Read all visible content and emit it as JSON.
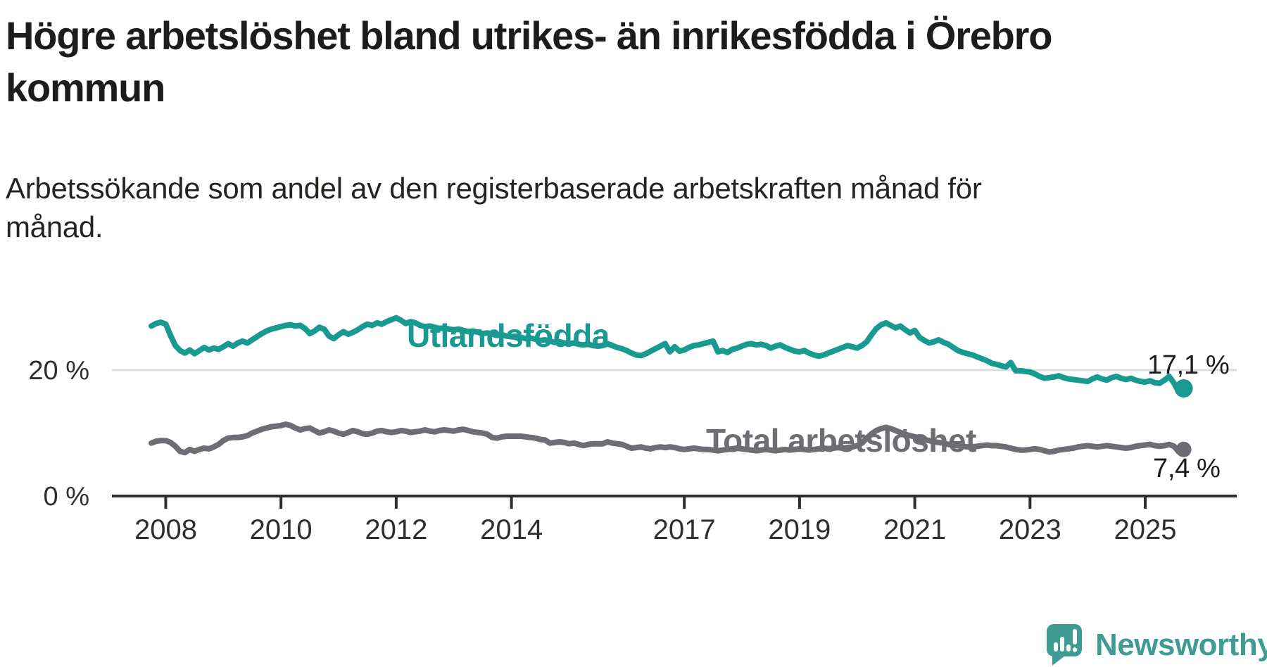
{
  "header": {
    "title": "Högre arbetslöshet bland utrikes- än inrikesfödda i Örebro kommun",
    "title_line1": "Högre arbetslöshet bland utrikes- än inrikesfödda i Örebro",
    "title_line2": "kommun",
    "subtitle": "Arbetssökande som andel av den registerbaserade arbetskraften månad för månad.",
    "subtitle_line1": "Arbetssökande som andel av den registerbaserade arbetskraften månad för",
    "subtitle_line2": "månad."
  },
  "footer": {
    "brand": "Newsworthy",
    "brand_color": "#3e9c95"
  },
  "chart_data": {
    "type": "line",
    "title": "Högre arbetslöshet bland utrikes- än inrikesfödda i Örebro kommun",
    "subtitle": "Arbetssökande som andel av den registerbaserade arbetskraften månad för månad.",
    "unit": "%",
    "x_start_year": 2007.75,
    "x_step_months": 1,
    "x_tick_years": [
      2008,
      2010,
      2012,
      2014,
      2017,
      2019,
      2021,
      2023,
      2025
    ],
    "ylim": [
      0,
      30
    ],
    "grid_value": 20,
    "y_ticks": [
      {
        "value": 20,
        "label": "20 %"
      },
      {
        "value": 0,
        "label": "0 %"
      }
    ],
    "colors": {
      "grid": "#dcdcdc",
      "axis": "#2d2d2d",
      "tick_text": "#2f2f2f",
      "value_text": "#1d1d1b"
    },
    "series": [
      {
        "name": "Utlandsfödda",
        "label": "Utlandsfödda",
        "color": "#189a90",
        "end_label": "17,1 %",
        "end_value": 17.1,
        "values": [
          27.0,
          27.4,
          27.6,
          27.3,
          25.5,
          23.9,
          23.1,
          22.7,
          23.2,
          22.6,
          23.1,
          23.6,
          23.2,
          23.5,
          23.3,
          23.7,
          24.2,
          23.8,
          24.3,
          24.6,
          24.3,
          24.8,
          25.3,
          25.8,
          26.2,
          26.5,
          26.7,
          26.9,
          27.1,
          27.2,
          27.0,
          27.1,
          26.6,
          25.8,
          26.2,
          26.8,
          26.5,
          25.4,
          25.0,
          25.6,
          26.1,
          25.7,
          26.0,
          26.4,
          26.9,
          27.3,
          27.1,
          27.5,
          27.3,
          27.7,
          28.0,
          28.3,
          27.9,
          27.4,
          27.7,
          27.5,
          27.1,
          26.9,
          27.0,
          26.8,
          26.6,
          26.7,
          26.5,
          26.4,
          26.5,
          26.3,
          26.1,
          26.2,
          26.0,
          25.8,
          25.9,
          25.7,
          25.5,
          25.6,
          25.4,
          25.3,
          25.4,
          25.2,
          25.0,
          25.1,
          24.9,
          24.7,
          24.8,
          24.6,
          24.4,
          24.5,
          24.3,
          24.2,
          24.3,
          24.1,
          24.0,
          24.1,
          23.9,
          23.8,
          23.9,
          24.2,
          23.9,
          23.6,
          23.4,
          23.1,
          22.7,
          22.4,
          22.3,
          22.6,
          23.0,
          23.4,
          23.8,
          24.2,
          22.9,
          23.7,
          23.0,
          23.2,
          23.6,
          23.9,
          24.0,
          24.2,
          24.4,
          24.6,
          22.9,
          23.1,
          22.8,
          23.3,
          23.5,
          23.8,
          24.1,
          24.2,
          24.0,
          24.1,
          23.9,
          23.5,
          23.8,
          24.0,
          23.6,
          23.3,
          23.0,
          22.9,
          23.1,
          22.7,
          22.4,
          22.2,
          22.4,
          22.7,
          23.0,
          23.3,
          23.6,
          23.9,
          23.7,
          23.5,
          23.9,
          24.5,
          25.6,
          26.6,
          27.2,
          27.5,
          27.1,
          26.7,
          27.0,
          26.4,
          25.9,
          26.3,
          25.2,
          24.7,
          24.3,
          24.5,
          24.8,
          24.4,
          24.1,
          23.6,
          23.1,
          22.8,
          22.6,
          22.4,
          22.1,
          21.8,
          21.5,
          21.1,
          20.9,
          20.7,
          20.5,
          21.2,
          19.9,
          19.9,
          19.8,
          19.7,
          19.4,
          19.0,
          18.7,
          18.8,
          18.9,
          19.1,
          18.8,
          18.6,
          18.5,
          18.4,
          18.3,
          18.2,
          18.6,
          18.9,
          18.6,
          18.4,
          18.8,
          19.0,
          18.7,
          18.5,
          18.7,
          18.4,
          18.2,
          18.1,
          18.3,
          18.0,
          17.9,
          18.4,
          19.0,
          17.9,
          16.5,
          17.1
        ]
      },
      {
        "name": "Total arbetslöshet",
        "label": "Total arbetslöshet",
        "color": "#6f6d73",
        "end_label": "7,4 %",
        "end_value": 7.4,
        "values": [
          8.4,
          8.7,
          8.8,
          8.8,
          8.5,
          7.9,
          7.1,
          6.9,
          7.4,
          7.1,
          7.4,
          7.6,
          7.5,
          7.8,
          8.2,
          8.8,
          9.2,
          9.3,
          9.3,
          9.4,
          9.6,
          10.0,
          10.3,
          10.6,
          10.8,
          11.0,
          11.1,
          11.2,
          11.4,
          11.2,
          10.8,
          10.5,
          10.7,
          10.8,
          10.4,
          10.0,
          10.2,
          10.5,
          10.3,
          10.0,
          9.8,
          10.1,
          10.4,
          10.2,
          9.9,
          9.8,
          10.0,
          10.3,
          10.4,
          10.2,
          10.1,
          10.2,
          10.4,
          10.3,
          10.1,
          10.2,
          10.3,
          10.5,
          10.3,
          10.2,
          10.4,
          10.5,
          10.4,
          10.3,
          10.5,
          10.6,
          10.4,
          10.2,
          10.1,
          10.0,
          9.8,
          9.3,
          9.2,
          9.4,
          9.5,
          9.5,
          9.5,
          9.5,
          9.4,
          9.3,
          9.2,
          9.0,
          8.9,
          8.4,
          8.5,
          8.6,
          8.5,
          8.3,
          8.4,
          8.2,
          8.0,
          8.2,
          8.3,
          8.3,
          8.3,
          8.6,
          8.4,
          8.3,
          8.2,
          7.9,
          7.6,
          7.7,
          7.8,
          7.6,
          7.5,
          7.7,
          7.8,
          7.7,
          7.8,
          7.7,
          7.5,
          7.4,
          7.5,
          7.6,
          7.5,
          7.4,
          7.4,
          7.3,
          7.2,
          7.3,
          7.4,
          7.5,
          7.6,
          7.5,
          7.4,
          7.3,
          7.2,
          7.3,
          7.4,
          7.3,
          7.2,
          7.3,
          7.4,
          7.3,
          7.4,
          7.5,
          7.4,
          7.3,
          7.4,
          7.5,
          7.6,
          7.5,
          7.6,
          7.7,
          7.6,
          7.7,
          7.8,
          8.0,
          8.4,
          9.2,
          9.9,
          10.4,
          10.7,
          10.9,
          10.7,
          10.4,
          10.1,
          9.8,
          9.6,
          9.4,
          9.2,
          9.0,
          8.8,
          8.6,
          8.5,
          8.4,
          8.2,
          8.1,
          8.0,
          7.9,
          7.8,
          7.8,
          7.9,
          8.0,
          8.1,
          8.0,
          8.0,
          7.9,
          7.8,
          7.6,
          7.4,
          7.3,
          7.3,
          7.4,
          7.5,
          7.4,
          7.2,
          7.0,
          7.1,
          7.3,
          7.4,
          7.5,
          7.6,
          7.8,
          7.9,
          8.0,
          7.9,
          7.8,
          7.9,
          8.0,
          7.9,
          7.8,
          7.7,
          7.6,
          7.7,
          7.9,
          8.0,
          8.1,
          8.2,
          8.0,
          7.9,
          8.0,
          8.2,
          7.9,
          7.0,
          7.4
        ]
      }
    ],
    "legend_position": "inline-labels",
    "grid": "single horizontal gridline at 20 %"
  }
}
